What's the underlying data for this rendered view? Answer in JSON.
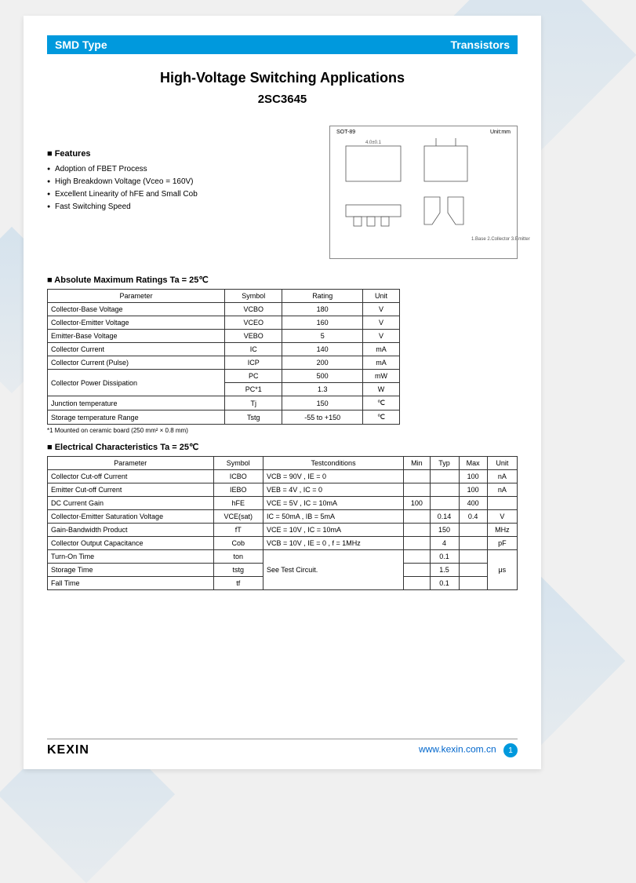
{
  "header": {
    "left": "SMD Type",
    "right": "Transistors"
  },
  "title": "High-Voltage Switching Applications",
  "part_number": "2SC3645",
  "features": {
    "heading": "■ Features",
    "items": [
      "Adoption of FBET Process",
      "High Breakdown Voltage (Vceo = 160V)",
      "Excellent Linearity of hFE and Small Cob",
      "Fast Switching Speed"
    ]
  },
  "package": {
    "label": "SOT-89",
    "unit": "Unit:mm",
    "pins": "1.Base\n2.Collector\n3.Emitter"
  },
  "table1": {
    "title": "■ Absolute Maximum Ratings Ta = 25℃",
    "columns": [
      "Parameter",
      "Symbol",
      "Rating",
      "Unit"
    ],
    "rows": [
      [
        "Collector-Base Voltage",
        "VCBO",
        "180",
        "V"
      ],
      [
        "Collector-Emitter Voltage",
        "VCEO",
        "160",
        "V"
      ],
      [
        "Emitter-Base Voltage",
        "VEBO",
        "5",
        "V"
      ],
      [
        "Collector Current",
        "IC",
        "140",
        "mA"
      ],
      [
        "Collector Current (Pulse)",
        "ICP",
        "200",
        "mA"
      ]
    ],
    "power_rows": [
      {
        "param": "Collector Power Dissipation",
        "sym": "PC",
        "rating": "500",
        "unit": "mW"
      },
      {
        "sym": "PC*1",
        "rating": "1.3",
        "unit": "W"
      }
    ],
    "tail_rows": [
      [
        "Junction temperature",
        "Tj",
        "150",
        "℃"
      ],
      [
        "Storage temperature Range",
        "Tstg",
        "-55 to +150",
        "℃"
      ]
    ],
    "footnote": "*1 Mounted on ceramic board (250 mm² × 0.8 mm)"
  },
  "table2": {
    "title": "■ Electrical Characteristics Ta = 25℃",
    "columns": [
      "Parameter",
      "Symbol",
      "Testconditions",
      "Min",
      "Typ",
      "Max",
      "Unit"
    ],
    "rows": [
      [
        "Collector Cut-off Current",
        "ICBO",
        "VCB = 90V , IE = 0",
        "",
        "",
        "100",
        "nA"
      ],
      [
        "Emitter Cut-off Current",
        "IEBO",
        "VEB = 4V , IC = 0",
        "",
        "",
        "100",
        "nA"
      ],
      [
        "DC Current Gain",
        "hFE",
        "VCE = 5V , IC = 10mA",
        "100",
        "",
        "400",
        ""
      ],
      [
        "Collector-Emitter Saturation Voltage",
        "VCE(sat)",
        "IC = 50mA , IB = 5mA",
        "",
        "0.14",
        "0.4",
        "V"
      ],
      [
        "Gain-Bandwidth Product",
        "fT",
        "VCE = 10V , IC = 10mA",
        "",
        "150",
        "",
        "MHz"
      ],
      [
        "Collector Output Capacitance",
        "Cob",
        "VCB = 10V , IE = 0 , f = 1MHz",
        "",
        "4",
        "",
        "pF"
      ]
    ],
    "timing_rows": [
      {
        "param": "Turn-On Time",
        "sym": "ton",
        "typ": "0.1"
      },
      {
        "param": "Storage Time",
        "sym": "tstg",
        "typ": "1.5"
      },
      {
        "param": "Fall Time",
        "sym": "tf",
        "typ": "0.1"
      }
    ],
    "timing_cond": "See Test Circuit.",
    "timing_unit": "μs"
  },
  "footer": {
    "logo": "KEXIN",
    "url": "www.kexin.com.cn",
    "page": "1"
  },
  "colors": {
    "accent": "#0099dd",
    "link": "#0066cc",
    "border": "#333333"
  }
}
